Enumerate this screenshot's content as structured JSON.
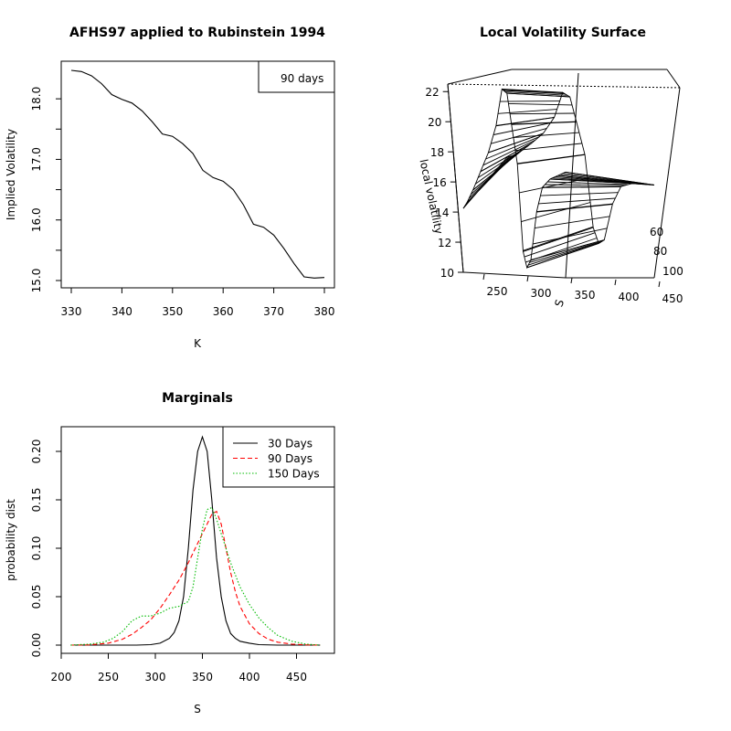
{
  "chart_data": [
    {
      "type": "line",
      "title": "AFHS97 applied to Rubinstein 1994",
      "xlabel": "K",
      "ylabel": "Implied Volatility",
      "xlim": [
        330,
        380
      ],
      "ylim": [
        15.0,
        18.5
      ],
      "xticks": [
        "330",
        "340",
        "350",
        "360",
        "370",
        "380"
      ],
      "yticks": [
        "15.0",
        "16.0",
        "17.0",
        "18.0"
      ],
      "legend": {
        "position": "top-right",
        "entries": [
          "90 days"
        ]
      },
      "series": [
        {
          "name": "90 days",
          "color": "#000000",
          "x": [
            330,
            332,
            334,
            336,
            338,
            340,
            342,
            344,
            346,
            348,
            350,
            352,
            354,
            356,
            358,
            360,
            362,
            364,
            366,
            368,
            370,
            372,
            374,
            376,
            378,
            380
          ],
          "y": [
            18.47,
            18.45,
            18.38,
            18.25,
            18.07,
            17.99,
            17.93,
            17.8,
            17.62,
            17.42,
            17.38,
            17.26,
            17.1,
            16.82,
            16.7,
            16.64,
            16.5,
            16.25,
            15.93,
            15.88,
            15.75,
            15.53,
            15.28,
            15.06,
            15.04,
            15.05
          ]
        }
      ]
    },
    {
      "type": "surface",
      "title": "Local Volatility Surface",
      "xlabel": "S",
      "ylabel": "",
      "zlabel": "local volatility",
      "xticks": [
        "250",
        "300",
        "350",
        "400",
        "450"
      ],
      "yticks": [
        "60",
        "80",
        "100"
      ],
      "zticks": [
        "10",
        "12",
        "14",
        "16",
        "18",
        "20",
        "22"
      ],
      "zlim": [
        10,
        22.5
      ],
      "profile_S": [
        205,
        215,
        230,
        250,
        270,
        290,
        305,
        318,
        330,
        345,
        360,
        370,
        380,
        395,
        410,
        430,
        450,
        470
      ],
      "profile_local_volatility": [
        14.2,
        14.6,
        15.4,
        16.6,
        17.8,
        19.5,
        21.8,
        21.5,
        19.5,
        17.0,
        11.5,
        10.5,
        11.0,
        14.0,
        15.5,
        16.0,
        16.2,
        16.4
      ]
    },
    {
      "type": "line",
      "title": "Marginals",
      "xlabel": "S",
      "ylabel": "probability dist",
      "xlim": [
        210,
        475
      ],
      "ylim": [
        0,
        0.22
      ],
      "xticks": [
        "200",
        "250",
        "300",
        "350",
        "400",
        "450"
      ],
      "yticks": [
        "0.00",
        "0.05",
        "0.10",
        "0.15",
        "0.20"
      ],
      "legend": {
        "position": "top-right",
        "entries": [
          "30 Days",
          "90 Days",
          "150 Days"
        ]
      },
      "series": [
        {
          "name": "30 Days",
          "color": "#000000",
          "dash": "solid",
          "x": [
            210,
            250,
            280,
            295,
            305,
            315,
            320,
            325,
            330,
            335,
            340,
            345,
            350,
            355,
            360,
            365,
            370,
            375,
            380,
            385,
            390,
            400,
            410,
            430,
            475
          ],
          "y": [
            0,
            0,
            0,
            0.0005,
            0.002,
            0.007,
            0.013,
            0.025,
            0.05,
            0.1,
            0.16,
            0.2,
            0.215,
            0.2,
            0.15,
            0.09,
            0.05,
            0.025,
            0.012,
            0.007,
            0.004,
            0.002,
            0.0005,
            0,
            0
          ]
        },
        {
          "name": "90 Days",
          "color": "#ff0000",
          "dash": "dashed",
          "x": [
            210,
            230,
            250,
            265,
            275,
            285,
            295,
            305,
            315,
            325,
            335,
            345,
            350,
            355,
            360,
            365,
            370,
            375,
            380,
            385,
            390,
            400,
            410,
            420,
            430,
            445,
            460,
            475
          ],
          "y": [
            0,
            0.0003,
            0.002,
            0.006,
            0.011,
            0.018,
            0.026,
            0.038,
            0.052,
            0.067,
            0.085,
            0.105,
            0.115,
            0.125,
            0.135,
            0.138,
            0.125,
            0.1,
            0.075,
            0.055,
            0.04,
            0.022,
            0.012,
            0.006,
            0.003,
            0.001,
            0.0003,
            0
          ]
        },
        {
          "name": "150 Days",
          "color": "#00bb00",
          "dash": "dotted",
          "x": [
            210,
            230,
            245,
            255,
            265,
            275,
            285,
            295,
            305,
            315,
            325,
            335,
            340,
            345,
            350,
            355,
            360,
            365,
            370,
            375,
            380,
            390,
            400,
            410,
            420,
            430,
            445,
            460,
            475
          ],
          "y": [
            0,
            0.001,
            0.003,
            0.007,
            0.014,
            0.025,
            0.03,
            0.03,
            0.033,
            0.038,
            0.04,
            0.045,
            0.06,
            0.09,
            0.12,
            0.14,
            0.142,
            0.13,
            0.115,
            0.1,
            0.085,
            0.06,
            0.042,
            0.028,
            0.018,
            0.01,
            0.004,
            0.001,
            0
          ]
        }
      ]
    }
  ]
}
